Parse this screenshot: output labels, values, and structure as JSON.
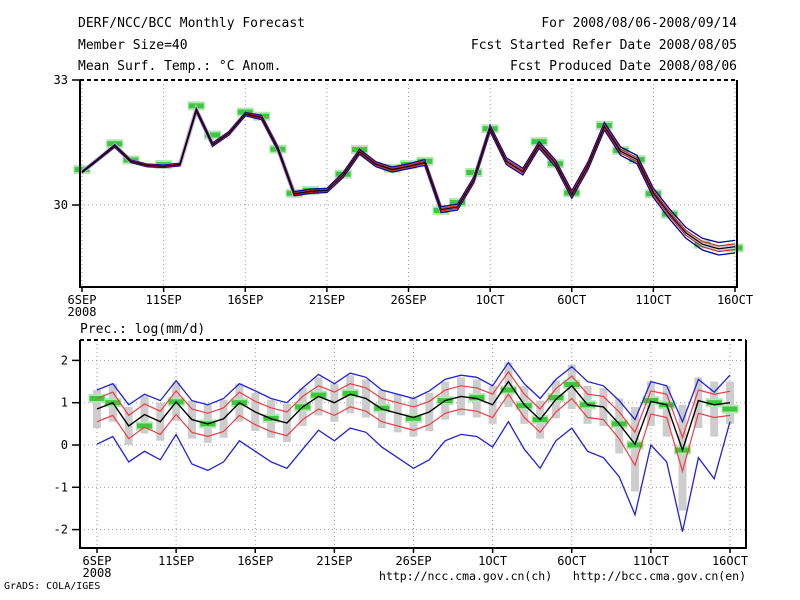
{
  "header": {
    "title": "DERF/NCC/BCC Monthly Forecast",
    "member_size": "Member Size=40",
    "for_range": "For 2008/08/06-2008/09/14",
    "refer_date": "Fcst Started Refer Date 2008/08/05",
    "produced_date": "Fcst Produced Date 2008/08/06"
  },
  "footer": {
    "grads_credit": "GrADS: COLA/IGES",
    "url_ch": "http://ncc.cma.gov.cn(ch)",
    "url_en": "http://bcc.cma.gov.cn(en)"
  },
  "colors": {
    "mean_black": "#000000",
    "temp_navy": "#000096",
    "temp_red": "#cc2020",
    "temp_halo": "#c6c6ce",
    "prec_blue": "#2222d8",
    "prec_red": "#f03c46",
    "obs_green": "#3cc83c",
    "obs_green_halo": "#b4e6b4",
    "bar_gray": "#cdcdcd",
    "grid_gray": "#999999"
  },
  "chart_data": [
    {
      "type": "line",
      "title": "Mean Surf. Temp.: °C Anom.",
      "x_tick_labels": [
        "6SEP",
        "11SEP",
        "16SEP",
        "21SEP",
        "26SEP",
        "1OCT",
        "6OCT",
        "11OCT",
        "16OCT"
      ],
      "x_tick_days": [
        0,
        5,
        10,
        15,
        20,
        25,
        30,
        35,
        40
      ],
      "x_first_sub_label": "2008",
      "y_ticks": [
        33,
        30
      ],
      "ylim": [
        28.0,
        33.0
      ],
      "grid": true,
      "legend_position": "none",
      "series": [
        {
          "name": "ensemble-mean",
          "color": "#000000",
          "values": [
            30.79,
            31.1,
            31.42,
            31.05,
            30.95,
            30.93,
            30.97,
            32.28,
            31.45,
            31.72,
            32.18,
            32.1,
            31.35,
            30.27,
            30.33,
            30.35,
            30.72,
            31.28,
            30.98,
            30.85,
            30.93,
            31.02,
            29.89,
            29.95,
            30.6,
            31.84,
            31.05,
            30.8,
            31.44,
            31.0,
            30.25,
            30.95,
            31.89,
            31.29,
            31.09,
            30.29,
            29.78,
            29.33,
            29.06,
            28.95,
            29.0
          ]
        },
        {
          "name": "spread-halfwidth",
          "color": "#000096",
          "values": [
            0.02,
            0.02,
            0.03,
            0.03,
            0.03,
            0.03,
            0.03,
            0.04,
            0.04,
            0.04,
            0.04,
            0.05,
            0.05,
            0.05,
            0.05,
            0.05,
            0.06,
            0.06,
            0.06,
            0.06,
            0.06,
            0.07,
            0.07,
            0.07,
            0.07,
            0.07,
            0.08,
            0.08,
            0.08,
            0.08,
            0.09,
            0.09,
            0.09,
            0.1,
            0.1,
            0.11,
            0.12,
            0.13,
            0.14,
            0.15,
            0.15
          ]
        }
      ],
      "obs_markers": [
        [
          0,
          30.85
        ],
        [
          2,
          31.47
        ],
        [
          3,
          31.08
        ],
        [
          5,
          30.97
        ],
        [
          7,
          32.38
        ],
        [
          8,
          31.68
        ],
        [
          10,
          32.23
        ],
        [
          11,
          32.13
        ],
        [
          12,
          31.34
        ],
        [
          13,
          30.28
        ],
        [
          14,
          30.35
        ],
        [
          16,
          30.74
        ],
        [
          17,
          31.33
        ],
        [
          19,
          30.88
        ],
        [
          20,
          30.97
        ],
        [
          21,
          31.05
        ],
        [
          22,
          29.87
        ],
        [
          23,
          30.06
        ],
        [
          24,
          30.78
        ],
        [
          25,
          31.83
        ],
        [
          28,
          31.52
        ],
        [
          29,
          30.99
        ],
        [
          30,
          30.29
        ],
        [
          32,
          31.91
        ],
        [
          33,
          31.31
        ],
        [
          34,
          31.09
        ],
        [
          35,
          30.27
        ],
        [
          36,
          29.78
        ],
        [
          38,
          29.06
        ],
        [
          40,
          28.97
        ]
      ]
    },
    {
      "type": "line",
      "title": "Prec.: log(mm/d)",
      "x_tick_labels": [
        "6SEP",
        "11SEP",
        "16SEP",
        "21SEP",
        "26SEP",
        "1OCT",
        "6OCT",
        "11OCT",
        "16OCT"
      ],
      "x_tick_days": [
        0,
        5,
        10,
        15,
        20,
        25,
        30,
        35,
        40
      ],
      "x_first_sub_label": "2008",
      "y_ticks": [
        2,
        1,
        0,
        -1,
        -2
      ],
      "ylim": [
        -2.45,
        2.48
      ],
      "grid": true,
      "legend_position": "none",
      "series": [
        {
          "name": "median",
          "color": "#000000",
          "values": [
            0.85,
            1.0,
            0.45,
            0.72,
            0.55,
            1.02,
            0.6,
            0.5,
            0.62,
            1.0,
            0.78,
            0.62,
            0.52,
            0.9,
            1.15,
            1.0,
            1.2,
            1.1,
            0.85,
            0.75,
            0.65,
            0.78,
            1.05,
            1.15,
            1.1,
            0.95,
            1.5,
            0.95,
            0.6,
            1.08,
            1.4,
            0.95,
            0.9,
            0.5,
            0.02,
            1.03,
            0.95,
            -0.12,
            1.05,
            0.95,
            1.0
          ]
        },
        {
          "name": "upper-quartile",
          "color": "#f03c46",
          "values": [
            1.1,
            1.25,
            0.7,
            0.97,
            0.8,
            1.28,
            0.85,
            0.75,
            0.88,
            1.25,
            1.03,
            0.88,
            0.78,
            1.15,
            1.4,
            1.25,
            1.45,
            1.35,
            1.1,
            1.0,
            0.9,
            1.03,
            1.3,
            1.4,
            1.35,
            1.2,
            1.73,
            1.2,
            0.85,
            1.33,
            1.63,
            1.2,
            1.15,
            0.78,
            0.3,
            1.28,
            1.2,
            0.18,
            1.3,
            1.2,
            1.27
          ]
        },
        {
          "name": "lower-quartile",
          "color": "#f03c46",
          "values": [
            0.55,
            0.7,
            0.15,
            0.42,
            0.25,
            0.72,
            0.3,
            0.2,
            0.32,
            0.7,
            0.48,
            0.32,
            0.22,
            0.6,
            0.85,
            0.7,
            0.9,
            0.8,
            0.55,
            0.45,
            0.35,
            0.48,
            0.75,
            0.85,
            0.8,
            0.65,
            1.2,
            0.65,
            0.3,
            0.78,
            1.1,
            0.65,
            0.6,
            0.15,
            -0.48,
            0.73,
            0.65,
            -0.62,
            0.75,
            0.65,
            0.7
          ]
        },
        {
          "name": "ensemble-max",
          "color": "#2222d8",
          "values": [
            1.3,
            1.45,
            0.95,
            1.2,
            1.05,
            1.52,
            1.05,
            0.95,
            1.1,
            1.45,
            1.28,
            1.1,
            1.0,
            1.35,
            1.67,
            1.45,
            1.7,
            1.6,
            1.3,
            1.2,
            1.1,
            1.28,
            1.55,
            1.65,
            1.6,
            1.4,
            1.95,
            1.45,
            1.1,
            1.55,
            1.85,
            1.5,
            1.4,
            1.05,
            0.6,
            1.5,
            1.4,
            0.55,
            1.55,
            1.25,
            1.65
          ]
        },
        {
          "name": "ensemble-min",
          "color": "#2222d8",
          "values": [
            0.02,
            0.2,
            -0.4,
            -0.15,
            -0.35,
            0.25,
            -0.45,
            -0.6,
            -0.4,
            0.1,
            -0.15,
            -0.4,
            -0.55,
            -0.1,
            0.35,
            0.1,
            0.4,
            0.3,
            -0.05,
            -0.3,
            -0.55,
            -0.35,
            0.1,
            0.25,
            0.2,
            -0.05,
            0.55,
            -0.1,
            -0.55,
            0.1,
            0.4,
            -0.15,
            -0.3,
            -0.75,
            -1.65,
            0.0,
            -0.4,
            -2.05,
            -0.3,
            -0.8,
            0.55
          ]
        }
      ],
      "spread_bars": [
        [
          0.4,
          1.3
        ],
        [
          0.55,
          1.45
        ],
        [
          0.0,
          0.9
        ],
        [
          0.27,
          1.17
        ],
        [
          0.1,
          1.0
        ],
        [
          0.57,
          1.47
        ],
        [
          0.15,
          1.05
        ],
        [
          0.05,
          0.95
        ],
        [
          0.17,
          1.07
        ],
        [
          0.55,
          1.45
        ],
        [
          0.33,
          1.23
        ],
        [
          0.17,
          1.07
        ],
        [
          0.07,
          0.97
        ],
        [
          0.45,
          1.35
        ],
        [
          0.7,
          1.6
        ],
        [
          0.55,
          1.45
        ],
        [
          0.75,
          1.65
        ],
        [
          0.65,
          1.55
        ],
        [
          0.4,
          1.3
        ],
        [
          0.3,
          1.2
        ],
        [
          0.2,
          1.1
        ],
        [
          0.33,
          1.23
        ],
        [
          0.6,
          1.5
        ],
        [
          0.7,
          1.6
        ],
        [
          0.65,
          1.55
        ],
        [
          0.5,
          1.4
        ],
        [
          0.9,
          1.95
        ],
        [
          0.5,
          1.4
        ],
        [
          0.15,
          1.05
        ],
        [
          0.63,
          1.53
        ],
        [
          0.85,
          1.9
        ],
        [
          0.5,
          1.4
        ],
        [
          0.45,
          1.35
        ],
        [
          -0.2,
          1.1
        ],
        [
          -1.1,
          0.9
        ],
        [
          0.45,
          1.5
        ],
        [
          0.2,
          1.4
        ],
        [
          -1.55,
          0.95
        ],
        [
          0.4,
          1.6
        ],
        [
          0.2,
          1.5
        ],
        [
          0.5,
          1.5
        ]
      ],
      "obs_markers": [
        [
          0,
          1.1
        ],
        [
          1,
          1.0
        ],
        [
          3,
          0.45
        ],
        [
          5,
          1.02
        ],
        [
          7,
          0.5
        ],
        [
          9,
          1.0
        ],
        [
          11,
          0.63
        ],
        [
          13,
          0.9
        ],
        [
          14,
          1.18
        ],
        [
          16,
          1.22
        ],
        [
          18,
          0.87
        ],
        [
          20,
          0.63
        ],
        [
          22,
          1.05
        ],
        [
          24,
          1.12
        ],
        [
          26,
          1.3
        ],
        [
          27,
          0.93
        ],
        [
          28,
          0.6
        ],
        [
          29,
          1.12
        ],
        [
          30,
          1.43
        ],
        [
          31,
          0.95
        ],
        [
          33,
          0.5
        ],
        [
          34,
          0.0
        ],
        [
          35,
          1.05
        ],
        [
          36,
          0.95
        ],
        [
          37,
          -0.12
        ],
        [
          39,
          1.0
        ],
        [
          40,
          0.85
        ]
      ]
    }
  ]
}
